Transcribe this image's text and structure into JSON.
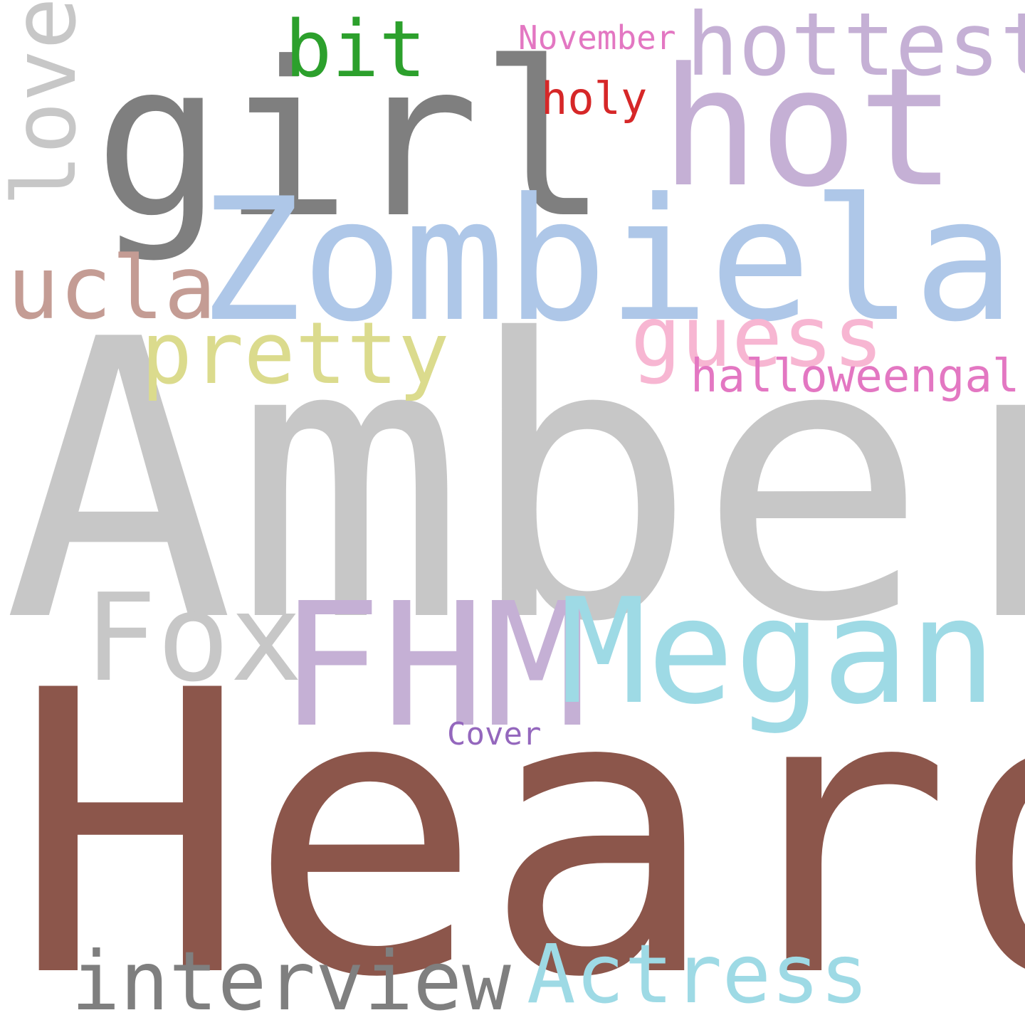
{
  "words": {
    "heard": {
      "text": "Heard",
      "color": "#8c564b"
    },
    "amber": {
      "text": "Amber",
      "color": "#c7c7c7"
    },
    "girl": {
      "text": "girl",
      "color": "#7f7f7f"
    },
    "zombieland": {
      "text": "Zombieland",
      "color": "#aec7e8"
    },
    "hot": {
      "text": "hot",
      "color": "#c5b0d5"
    },
    "fhm": {
      "text": "FHM",
      "color": "#c5b0d5"
    },
    "megan": {
      "text": "Megan",
      "color": "#9edae5"
    },
    "fox": {
      "text": "Fox",
      "color": "#c7c7c7"
    },
    "hottest": {
      "text": "hottest",
      "color": "#c5b0d5"
    },
    "love": {
      "text": "love",
      "color": "#c7c7c7"
    },
    "ucla": {
      "text": "ucla",
      "color": "#c49c94"
    },
    "pretty": {
      "text": "pretty",
      "color": "#dbdb8d"
    },
    "guess": {
      "text": "guess",
      "color": "#f7b6d2"
    },
    "interview": {
      "text": "interview",
      "color": "#7f7f7f"
    },
    "actress": {
      "text": "Actress",
      "color": "#9edae5"
    },
    "bit": {
      "text": "bit",
      "color": "#2ca02c"
    },
    "halloweengal": {
      "text": "halloweengal",
      "color": "#e377c2"
    },
    "holy": {
      "text": "holy",
      "color": "#d62728"
    },
    "november": {
      "text": "November",
      "color": "#e377c2"
    },
    "cover": {
      "text": "Cover",
      "color": "#9467bd"
    }
  }
}
